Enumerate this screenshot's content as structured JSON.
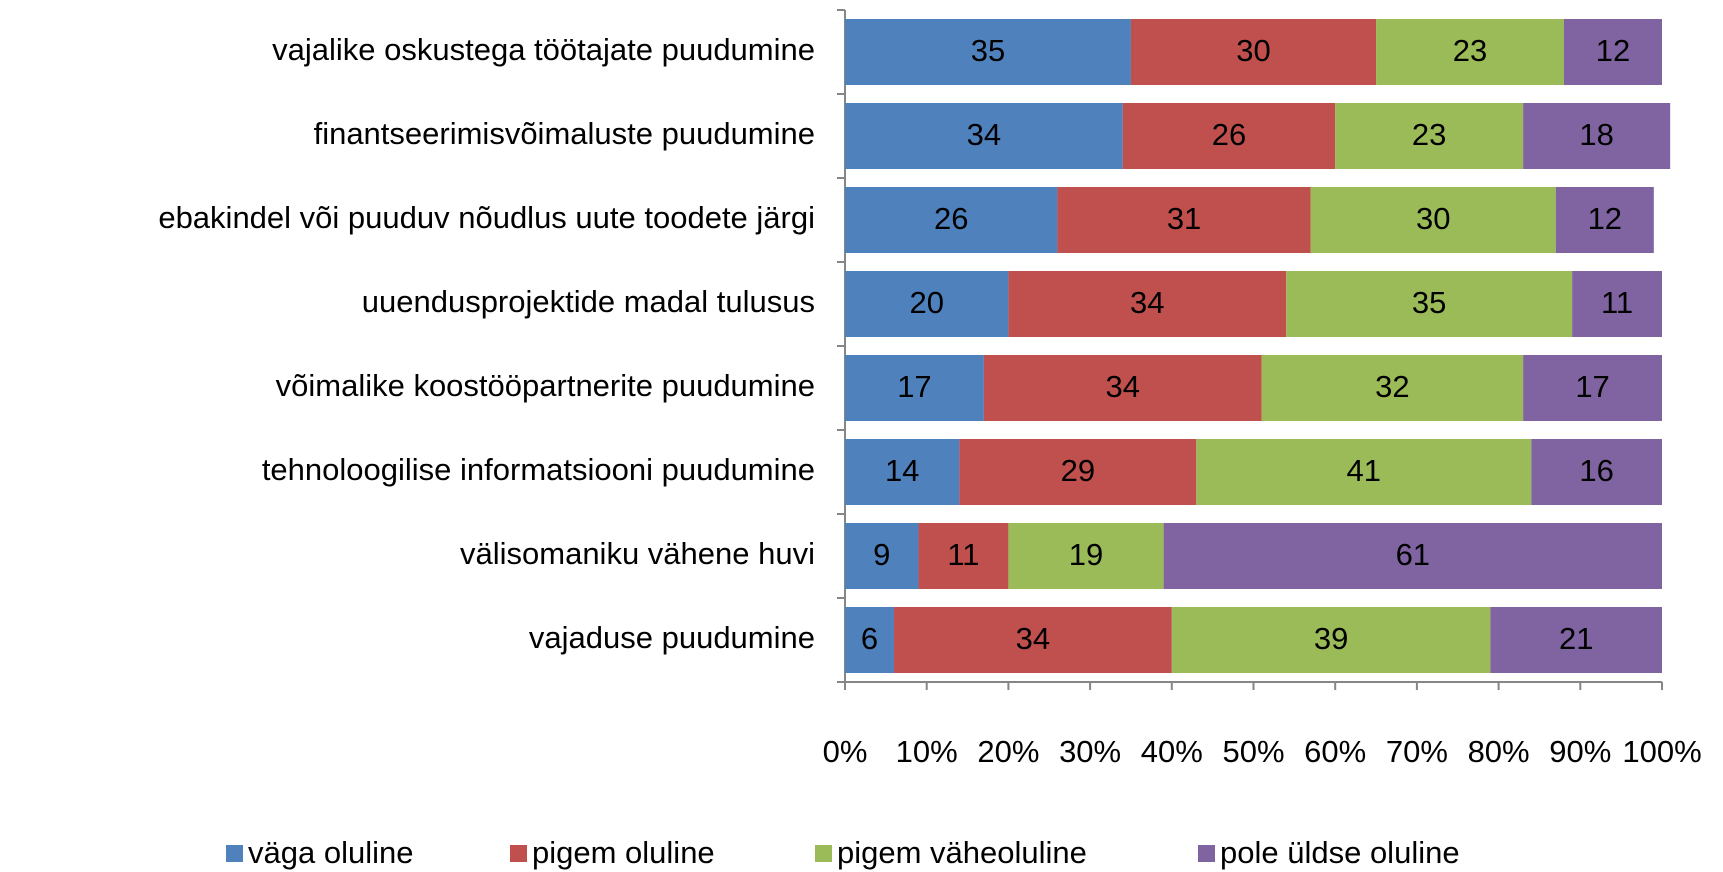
{
  "chart_data": {
    "type": "bar",
    "orientation": "horizontal",
    "stacked": true,
    "categories": [
      "vajalike oskustega töötajate puudumine",
      "finantseerimisvõimaluste puudumine",
      "ebakindel või puuduv nõudlus uute toodete järgi",
      "uuendusprojektide madal tulusus",
      "võimalike koostööpartnerite puudumine",
      "tehnoloogilise informatsiooni puudumine",
      "välisomaniku vähene huvi",
      "vajaduse puudumine"
    ],
    "series": [
      {
        "name": "väga oluline",
        "color": "#4f81bd",
        "values": [
          35,
          34,
          26,
          20,
          17,
          14,
          9,
          6
        ]
      },
      {
        "name": "pigem oluline",
        "color": "#c0504d",
        "values": [
          30,
          26,
          31,
          34,
          34,
          29,
          11,
          34
        ]
      },
      {
        "name": "pigem väheoluline",
        "color": "#9bbb59",
        "values": [
          23,
          23,
          30,
          35,
          32,
          41,
          19,
          39
        ]
      },
      {
        "name": "pole üldse oluline",
        "color": "#8064a2",
        "values": [
          12,
          18,
          12,
          11,
          17,
          16,
          61,
          21
        ]
      }
    ],
    "xlim": [
      0,
      100
    ],
    "xticks": [
      {
        "value": 0,
        "label": "0%"
      },
      {
        "value": 10,
        "label": "10%"
      },
      {
        "value": 20,
        "label": "20%"
      },
      {
        "value": 30,
        "label": "30%"
      },
      {
        "value": 40,
        "label": "40%"
      },
      {
        "value": 50,
        "label": "50%"
      },
      {
        "value": 60,
        "label": "60%"
      },
      {
        "value": 70,
        "label": "70%"
      },
      {
        "value": 80,
        "label": "80%"
      },
      {
        "value": 90,
        "label": "90%"
      },
      {
        "value": 100,
        "label": "100%"
      }
    ],
    "legend": "bottom",
    "grid": false
  }
}
